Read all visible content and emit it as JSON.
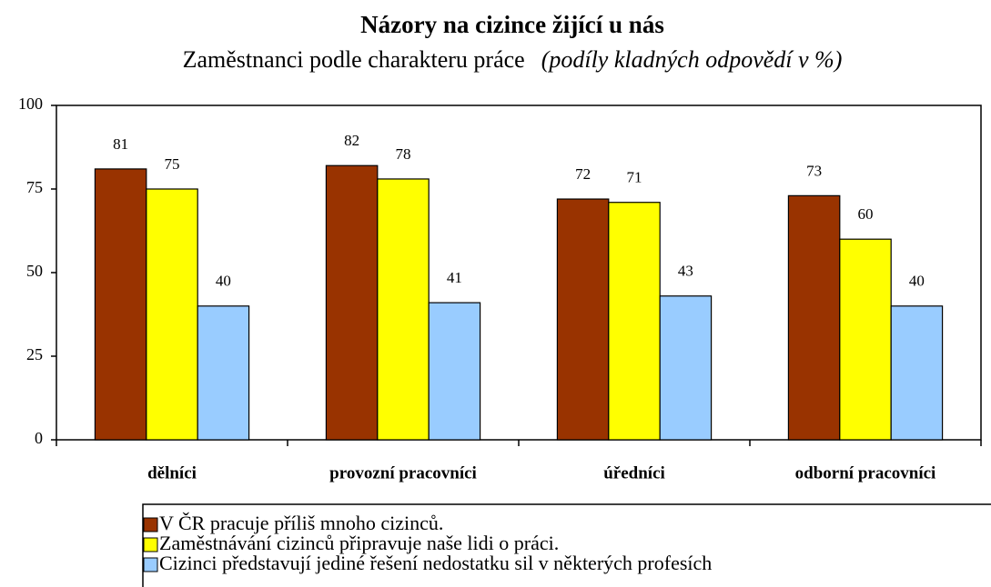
{
  "chart_data": {
    "type": "bar",
    "title": "Názory na cizince žijící u nás",
    "subtitle": "Zaměstnanci podle charakteru práce",
    "subtitle_note": "(podíly kladných odpovědí v %)",
    "categories": [
      "dělníci",
      "provozní pracovníci",
      "úředníci",
      "odborní pracovníci"
    ],
    "series": [
      {
        "name": "V ČR pracuje příliš mnoho cizinců.",
        "color": "#993300",
        "values": [
          81,
          82,
          72,
          73
        ]
      },
      {
        "name": "Zaměstnávání cizinců připravuje naše lidi o práci.",
        "color": "#ffff00",
        "values": [
          75,
          78,
          71,
          60
        ]
      },
      {
        "name": "Cizinci představují jediné řešení nedostatku sil v některých profesích",
        "color": "#99ccff",
        "values": [
          40,
          41,
          43,
          40
        ]
      }
    ],
    "ylim": [
      0,
      100
    ],
    "yticks": [
      0,
      25,
      50,
      75,
      100
    ],
    "grid": false,
    "legend": "bottom"
  }
}
